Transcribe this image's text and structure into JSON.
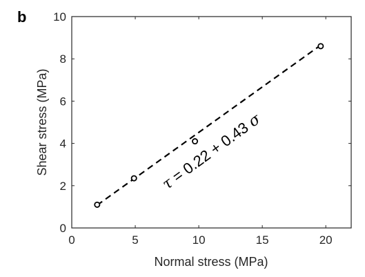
{
  "panel_label": "b",
  "chart_data": {
    "type": "scatter",
    "xlabel": "Normal stress (MPa)",
    "ylabel": "Shear stress (MPa)",
    "xlim": [
      0,
      22
    ],
    "ylim": [
      0,
      10
    ],
    "xticks": [
      0,
      5,
      10,
      15,
      20
    ],
    "yticks": [
      0,
      2,
      4,
      6,
      8,
      10
    ],
    "grid": false,
    "series": [
      {
        "marker": "open-circle",
        "color": "#000000",
        "x": [
          2.0,
          4.9,
          9.7,
          19.6
        ],
        "y": [
          1.1,
          2.35,
          4.1,
          8.6
        ]
      }
    ],
    "fit_line": {
      "style": "dashed",
      "color": "#000000",
      "intercept": 0.22,
      "slope": 0.43,
      "x_range": [
        2.0,
        19.6
      ]
    },
    "annotation": {
      "tau_symbol": "τ",
      "equation_text": " = 0.22 + 0.43 ",
      "sigma_symbol": "σ"
    }
  }
}
